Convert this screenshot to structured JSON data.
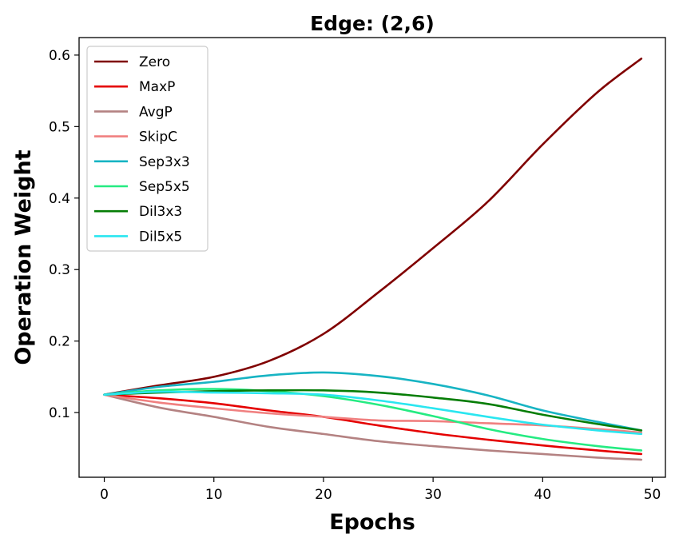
{
  "chart_data": {
    "type": "line",
    "title": "Edge: (2,6)",
    "xlabel": "Epochs",
    "ylabel": "Operation Weight",
    "xlim": [
      -2.3,
      51.2
    ],
    "ylim": [
      0.0095,
      0.6245
    ],
    "xticks": [
      0,
      10,
      20,
      30,
      40,
      50
    ],
    "yticks": [
      0.1,
      0.2,
      0.3,
      0.4,
      0.5,
      0.6
    ],
    "xtick_labels": [
      "0",
      "10",
      "20",
      "30",
      "40",
      "50"
    ],
    "ytick_labels": [
      "0.1",
      "0.2",
      "0.3",
      "0.4",
      "0.5",
      "0.6"
    ],
    "grid": false,
    "legend_position": "upper-left",
    "x": [
      0,
      5,
      10,
      15,
      20,
      25,
      30,
      35,
      40,
      45,
      49
    ],
    "series": [
      {
        "name": "Zero",
        "color": "#800000",
        "values": [
          0.125,
          0.138,
          0.15,
          0.172,
          0.21,
          0.268,
          0.33,
          0.395,
          0.475,
          0.548,
          0.595
        ]
      },
      {
        "name": "MaxP",
        "color": "#e50000",
        "values": [
          0.125,
          0.12,
          0.113,
          0.103,
          0.094,
          0.082,
          0.071,
          0.062,
          0.054,
          0.047,
          0.042
        ]
      },
      {
        "name": "AvgP",
        "color": "#b48282",
        "values": [
          0.125,
          0.107,
          0.094,
          0.08,
          0.07,
          0.06,
          0.053,
          0.047,
          0.042,
          0.037,
          0.034
        ]
      },
      {
        "name": "SkipC",
        "color": "#f08080",
        "values": [
          0.125,
          0.114,
          0.106,
          0.099,
          0.094,
          0.089,
          0.088,
          0.085,
          0.082,
          0.077,
          0.072
        ]
      },
      {
        "name": "Sep3x3",
        "color": "#17b4c3",
        "values": [
          0.125,
          0.136,
          0.143,
          0.152,
          0.156,
          0.151,
          0.14,
          0.124,
          0.103,
          0.087,
          0.075
        ]
      },
      {
        "name": "Sep5x5",
        "color": "#25eb82",
        "values": [
          0.125,
          0.131,
          0.133,
          0.13,
          0.123,
          0.111,
          0.095,
          0.077,
          0.063,
          0.053,
          0.047
        ]
      },
      {
        "name": "Dil3x3",
        "color": "#057d05",
        "values": [
          0.125,
          0.128,
          0.13,
          0.131,
          0.131,
          0.128,
          0.121,
          0.112,
          0.097,
          0.084,
          0.075
        ]
      },
      {
        "name": "Dil5x5",
        "color": "#2ae6f0",
        "values": [
          0.125,
          0.129,
          0.128,
          0.127,
          0.125,
          0.117,
          0.106,
          0.094,
          0.083,
          0.075,
          0.07
        ]
      }
    ]
  }
}
